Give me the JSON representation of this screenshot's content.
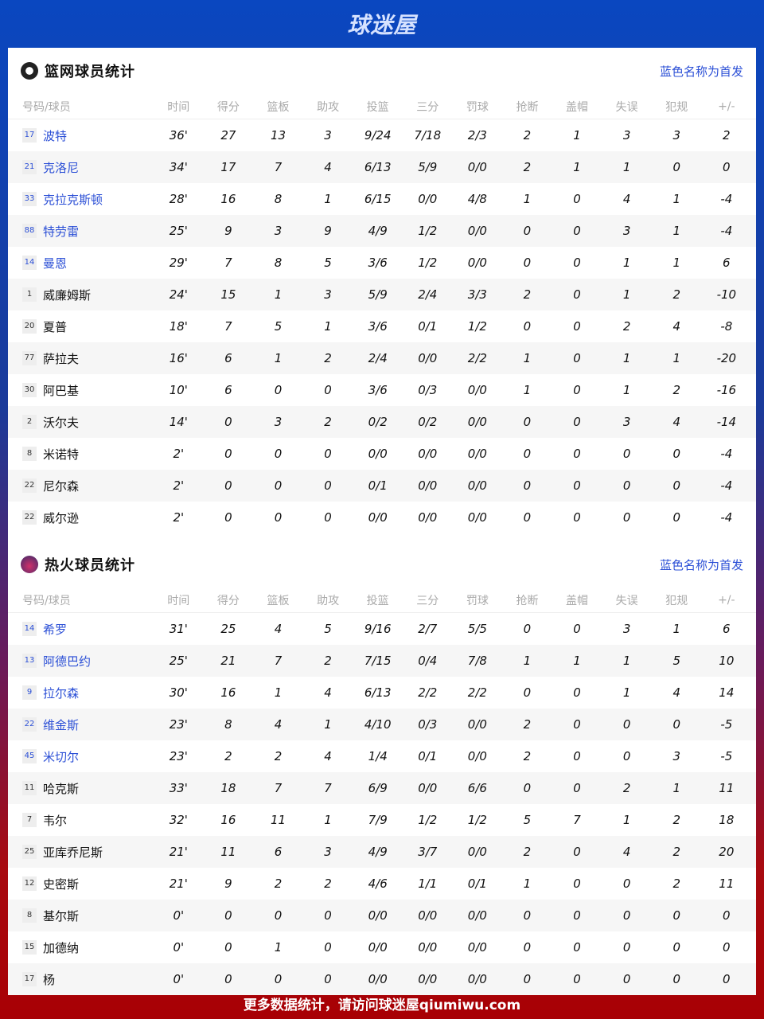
{
  "logo": "球迷屋",
  "footer": "更多数据统计，请访问球迷屋qiumiwu.com",
  "colors": {
    "starter": "#2b4fd6",
    "header_bg": "#0a47c0",
    "footer_bg": "#a80004"
  },
  "columns": [
    "号码/球员",
    "时间",
    "得分",
    "篮板",
    "助攻",
    "投篮",
    "三分",
    "罚球",
    "抢断",
    "盖帽",
    "失误",
    "犯规",
    "+/-"
  ],
  "teams": [
    {
      "title": "篮网球员统计",
      "icon": "nets-logo-icon",
      "note": "蓝色名称为首发",
      "players": [
        {
          "num": "17",
          "name": "波特",
          "starter": true,
          "stats": [
            "36'",
            "27",
            "13",
            "3",
            "9/24",
            "7/18",
            "2/3",
            "2",
            "1",
            "3",
            "3",
            "2"
          ]
        },
        {
          "num": "21",
          "name": "克洛尼",
          "starter": true,
          "stats": [
            "34'",
            "17",
            "7",
            "4",
            "6/13",
            "5/9",
            "0/0",
            "2",
            "1",
            "1",
            "0",
            "0"
          ]
        },
        {
          "num": "33",
          "name": "克拉克斯顿",
          "starter": true,
          "stats": [
            "28'",
            "16",
            "8",
            "1",
            "6/15",
            "0/0",
            "4/8",
            "1",
            "0",
            "4",
            "1",
            "-4"
          ]
        },
        {
          "num": "88",
          "name": "特劳雷",
          "starter": true,
          "stats": [
            "25'",
            "9",
            "3",
            "9",
            "4/9",
            "1/2",
            "0/0",
            "0",
            "0",
            "3",
            "1",
            "-4"
          ]
        },
        {
          "num": "14",
          "name": "曼恩",
          "starter": true,
          "stats": [
            "29'",
            "7",
            "8",
            "5",
            "3/6",
            "1/2",
            "0/0",
            "0",
            "0",
            "1",
            "1",
            "6"
          ]
        },
        {
          "num": "1",
          "name": "威廉姆斯",
          "starter": false,
          "stats": [
            "24'",
            "15",
            "1",
            "3",
            "5/9",
            "2/4",
            "3/3",
            "2",
            "0",
            "1",
            "2",
            "-10"
          ]
        },
        {
          "num": "20",
          "name": "夏普",
          "starter": false,
          "stats": [
            "18'",
            "7",
            "5",
            "1",
            "3/6",
            "0/1",
            "1/2",
            "0",
            "0",
            "2",
            "4",
            "-8"
          ]
        },
        {
          "num": "77",
          "name": "萨拉夫",
          "starter": false,
          "stats": [
            "16'",
            "6",
            "1",
            "2",
            "2/4",
            "0/0",
            "2/2",
            "1",
            "0",
            "1",
            "1",
            "-20"
          ]
        },
        {
          "num": "30",
          "name": "阿巴基",
          "starter": false,
          "stats": [
            "10'",
            "6",
            "0",
            "0",
            "3/6",
            "0/3",
            "0/0",
            "1",
            "0",
            "1",
            "2",
            "-16"
          ]
        },
        {
          "num": "2",
          "name": "沃尔夫",
          "starter": false,
          "stats": [
            "14'",
            "0",
            "3",
            "2",
            "0/2",
            "0/2",
            "0/0",
            "0",
            "0",
            "3",
            "4",
            "-14"
          ]
        },
        {
          "num": "8",
          "name": "米诺特",
          "starter": false,
          "stats": [
            "2'",
            "0",
            "0",
            "0",
            "0/0",
            "0/0",
            "0/0",
            "0",
            "0",
            "0",
            "0",
            "-4"
          ]
        },
        {
          "num": "22",
          "name": "尼尔森",
          "starter": false,
          "stats": [
            "2'",
            "0",
            "0",
            "0",
            "0/1",
            "0/0",
            "0/0",
            "0",
            "0",
            "0",
            "0",
            "-4"
          ]
        },
        {
          "num": "22",
          "name": "威尔逊",
          "starter": false,
          "stats": [
            "2'",
            "0",
            "0",
            "0",
            "0/0",
            "0/0",
            "0/0",
            "0",
            "0",
            "0",
            "0",
            "-4"
          ]
        }
      ]
    },
    {
      "title": "热火球员统计",
      "icon": "heat-logo-icon",
      "note": "蓝色名称为首发",
      "players": [
        {
          "num": "14",
          "name": "希罗",
          "starter": true,
          "stats": [
            "31'",
            "25",
            "4",
            "5",
            "9/16",
            "2/7",
            "5/5",
            "0",
            "0",
            "3",
            "1",
            "6"
          ]
        },
        {
          "num": "13",
          "name": "阿德巴约",
          "starter": true,
          "stats": [
            "25'",
            "21",
            "7",
            "2",
            "7/15",
            "0/4",
            "7/8",
            "1",
            "1",
            "1",
            "5",
            "10"
          ]
        },
        {
          "num": "9",
          "name": "拉尔森",
          "starter": true,
          "stats": [
            "30'",
            "16",
            "1",
            "4",
            "6/13",
            "2/2",
            "2/2",
            "0",
            "0",
            "1",
            "4",
            "14"
          ]
        },
        {
          "num": "22",
          "name": "维金斯",
          "starter": true,
          "stats": [
            "23'",
            "8",
            "4",
            "1",
            "4/10",
            "0/3",
            "0/0",
            "2",
            "0",
            "0",
            "0",
            "-5"
          ]
        },
        {
          "num": "45",
          "name": "米切尔",
          "starter": true,
          "stats": [
            "23'",
            "2",
            "2",
            "4",
            "1/4",
            "0/1",
            "0/0",
            "2",
            "0",
            "0",
            "3",
            "-5"
          ]
        },
        {
          "num": "11",
          "name": "哈克斯",
          "starter": false,
          "stats": [
            "33'",
            "18",
            "7",
            "7",
            "6/9",
            "0/0",
            "6/6",
            "0",
            "0",
            "2",
            "1",
            "11"
          ]
        },
        {
          "num": "7",
          "name": "韦尔",
          "starter": false,
          "stats": [
            "32'",
            "16",
            "11",
            "1",
            "7/9",
            "1/2",
            "1/2",
            "5",
            "7",
            "1",
            "2",
            "18"
          ]
        },
        {
          "num": "25",
          "name": "亚库乔尼斯",
          "starter": false,
          "stats": [
            "21'",
            "11",
            "6",
            "3",
            "4/9",
            "3/7",
            "0/0",
            "2",
            "0",
            "4",
            "2",
            "20"
          ]
        },
        {
          "num": "12",
          "name": "史密斯",
          "starter": false,
          "stats": [
            "21'",
            "9",
            "2",
            "2",
            "4/6",
            "1/1",
            "0/1",
            "1",
            "0",
            "0",
            "2",
            "11"
          ]
        },
        {
          "num": "8",
          "name": "基尔斯",
          "starter": false,
          "stats": [
            "0'",
            "0",
            "0",
            "0",
            "0/0",
            "0/0",
            "0/0",
            "0",
            "0",
            "0",
            "0",
            "0"
          ]
        },
        {
          "num": "15",
          "name": "加德纳",
          "starter": false,
          "stats": [
            "0'",
            "0",
            "1",
            "0",
            "0/0",
            "0/0",
            "0/0",
            "0",
            "0",
            "0",
            "0",
            "0"
          ]
        },
        {
          "num": "17",
          "name": "杨",
          "starter": false,
          "stats": [
            "0'",
            "0",
            "0",
            "0",
            "0/0",
            "0/0",
            "0/0",
            "0",
            "0",
            "0",
            "0",
            "0"
          ]
        }
      ]
    }
  ]
}
